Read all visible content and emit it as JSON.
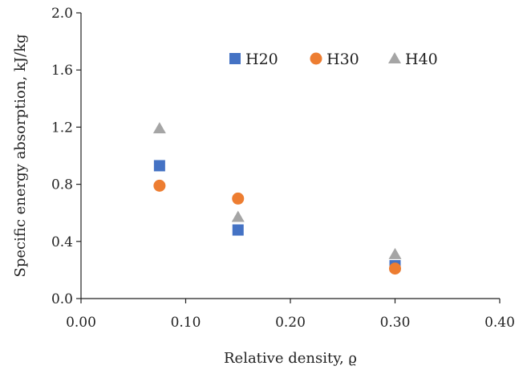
{
  "chart_data": {
    "type": "scatter",
    "title": "",
    "xlabel": "Relative density, ϱ",
    "ylabel": "Specific energy absorption, kJ/kg",
    "xlim": [
      0.0,
      0.4
    ],
    "ylim": [
      0.0,
      2.0
    ],
    "xticks": [
      0.0,
      0.1,
      0.2,
      0.3,
      0.4
    ],
    "yticks": [
      0.0,
      0.4,
      0.8,
      1.2,
      1.6,
      2.0
    ],
    "xtick_labels": [
      "0.00",
      "0.10",
      "0.20",
      "0.30",
      "0.40"
    ],
    "ytick_labels": [
      "0.0",
      "0.4",
      "0.8",
      "1.2",
      "1.6",
      "2.0"
    ],
    "grid": false,
    "legend_position": "top-right",
    "series": [
      {
        "name": "H20",
        "marker": "square",
        "color": "#4472C4",
        "points": [
          {
            "x": 0.075,
            "y": 0.93
          },
          {
            "x": 0.15,
            "y": 0.48
          },
          {
            "x": 0.3,
            "y": 0.23
          }
        ]
      },
      {
        "name": "H30",
        "marker": "circle",
        "color": "#ED7D31",
        "points": [
          {
            "x": 0.075,
            "y": 0.79
          },
          {
            "x": 0.15,
            "y": 0.7
          },
          {
            "x": 0.3,
            "y": 0.21
          }
        ]
      },
      {
        "name": "H40",
        "marker": "triangle",
        "color": "#A5A5A5",
        "points": [
          {
            "x": 0.075,
            "y": 1.19
          },
          {
            "x": 0.15,
            "y": 0.57
          },
          {
            "x": 0.3,
            "y": 0.31
          }
        ]
      }
    ]
  }
}
